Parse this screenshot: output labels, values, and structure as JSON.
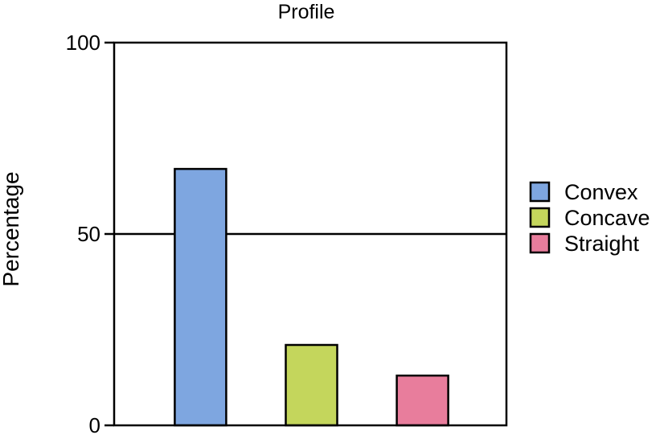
{
  "chart_data": {
    "type": "bar",
    "title": "Profile",
    "xlabel": "",
    "ylabel": "Percentage",
    "ylim": [
      0,
      100
    ],
    "yticks": [
      0,
      50,
      100
    ],
    "categories": [
      "Convex",
      "Concave",
      "Straight"
    ],
    "values": [
      67,
      21,
      13
    ],
    "colors": [
      "#7ea6e0",
      "#c4d65c",
      "#e87d9c"
    ],
    "grid": "horizontal line at 50",
    "legend": {
      "position": "right",
      "entries": [
        {
          "label": "Convex",
          "color": "#7ea6e0"
        },
        {
          "label": "Concave",
          "color": "#c4d65c"
        },
        {
          "label": "Straight",
          "color": "#e87d9c"
        }
      ]
    }
  }
}
